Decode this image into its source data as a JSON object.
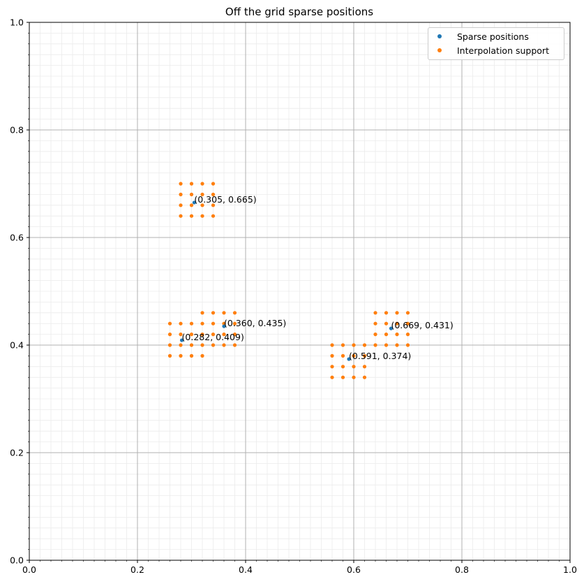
{
  "chart_data": {
    "type": "scatter",
    "title": "Off the grid sparse positions",
    "xlabel": "",
    "ylabel": "",
    "xlim": [
      0.0,
      1.0
    ],
    "ylim": [
      0.0,
      1.0
    ],
    "grid": {
      "major": true,
      "minor": true
    },
    "xticks": [
      "0.0",
      "0.2",
      "0.4",
      "0.6",
      "0.8",
      "1.0"
    ],
    "yticks": [
      "0.0",
      "0.2",
      "0.4",
      "0.6",
      "0.8",
      "1.0"
    ],
    "legend_position": "top-right",
    "series": [
      {
        "name": "Sparse positions",
        "color": "#1f77b4",
        "points": [
          [
            0.305,
            0.665
          ],
          [
            0.36,
            0.435
          ],
          [
            0.282,
            0.409
          ],
          [
            0.669,
            0.431
          ],
          [
            0.591,
            0.374
          ]
        ]
      },
      {
        "name": "Interpolation support",
        "color": "#ff7f0e",
        "points": [
          [
            0.28,
            0.7
          ],
          [
            0.3,
            0.7
          ],
          [
            0.32,
            0.7
          ],
          [
            0.34,
            0.7
          ],
          [
            0.28,
            0.68
          ],
          [
            0.3,
            0.68
          ],
          [
            0.32,
            0.68
          ],
          [
            0.34,
            0.68
          ],
          [
            0.28,
            0.66
          ],
          [
            0.3,
            0.66
          ],
          [
            0.32,
            0.66
          ],
          [
            0.34,
            0.66
          ],
          [
            0.28,
            0.64
          ],
          [
            0.3,
            0.64
          ],
          [
            0.32,
            0.64
          ],
          [
            0.34,
            0.64
          ],
          [
            0.32,
            0.46
          ],
          [
            0.34,
            0.46
          ],
          [
            0.36,
            0.46
          ],
          [
            0.38,
            0.46
          ],
          [
            0.32,
            0.44
          ],
          [
            0.34,
            0.44
          ],
          [
            0.36,
            0.44
          ],
          [
            0.38,
            0.44
          ],
          [
            0.32,
            0.42
          ],
          [
            0.34,
            0.42
          ],
          [
            0.36,
            0.42
          ],
          [
            0.38,
            0.42
          ],
          [
            0.32,
            0.4
          ],
          [
            0.34,
            0.4
          ],
          [
            0.36,
            0.4
          ],
          [
            0.38,
            0.4
          ],
          [
            0.26,
            0.44
          ],
          [
            0.28,
            0.44
          ],
          [
            0.3,
            0.44
          ],
          [
            0.26,
            0.42
          ],
          [
            0.28,
            0.42
          ],
          [
            0.3,
            0.42
          ],
          [
            0.26,
            0.4
          ],
          [
            0.28,
            0.4
          ],
          [
            0.3,
            0.4
          ],
          [
            0.26,
            0.38
          ],
          [
            0.28,
            0.38
          ],
          [
            0.3,
            0.38
          ],
          [
            0.32,
            0.38
          ],
          [
            0.64,
            0.46
          ],
          [
            0.66,
            0.46
          ],
          [
            0.68,
            0.46
          ],
          [
            0.7,
            0.46
          ],
          [
            0.64,
            0.44
          ],
          [
            0.66,
            0.44
          ],
          [
            0.68,
            0.44
          ],
          [
            0.7,
            0.44
          ],
          [
            0.64,
            0.42
          ],
          [
            0.66,
            0.42
          ],
          [
            0.68,
            0.42
          ],
          [
            0.7,
            0.42
          ],
          [
            0.64,
            0.4
          ],
          [
            0.66,
            0.4
          ],
          [
            0.68,
            0.4
          ],
          [
            0.7,
            0.4
          ],
          [
            0.56,
            0.4
          ],
          [
            0.58,
            0.4
          ],
          [
            0.6,
            0.4
          ],
          [
            0.62,
            0.4
          ],
          [
            0.56,
            0.38
          ],
          [
            0.58,
            0.38
          ],
          [
            0.6,
            0.38
          ],
          [
            0.62,
            0.38
          ],
          [
            0.56,
            0.36
          ],
          [
            0.58,
            0.36
          ],
          [
            0.6,
            0.36
          ],
          [
            0.62,
            0.36
          ],
          [
            0.56,
            0.34
          ],
          [
            0.58,
            0.34
          ],
          [
            0.6,
            0.34
          ],
          [
            0.62,
            0.34
          ]
        ]
      }
    ],
    "annotations": [
      {
        "text": "(0.305, 0.665)",
        "x": 0.305,
        "y": 0.665
      },
      {
        "text": "(0.360, 0.435)",
        "x": 0.36,
        "y": 0.435
      },
      {
        "text": "(0.282, 0.409)",
        "x": 0.282,
        "y": 0.409
      },
      {
        "text": "(0.669, 0.431)",
        "x": 0.669,
        "y": 0.431
      },
      {
        "text": "(0.591, 0.374)",
        "x": 0.591,
        "y": 0.374
      }
    ]
  }
}
